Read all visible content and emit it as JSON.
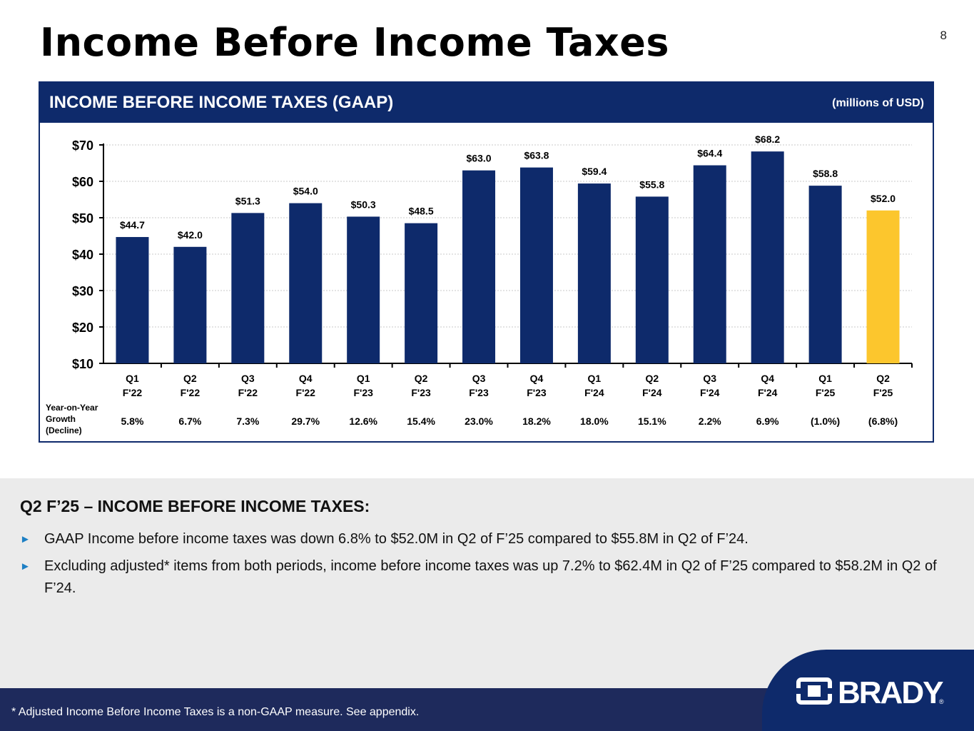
{
  "title": "Income Before Income Taxes",
  "page_number": "8",
  "panel": {
    "title": "INCOME BEFORE INCOME TAXES (GAAP)",
    "units": "(millions of USD)"
  },
  "chart_data": {
    "type": "bar",
    "title": "INCOME BEFORE INCOME TAXES (GAAP)",
    "categories": [
      "Q1\nF'22",
      "Q2\nF'22",
      "Q3\nF'22",
      "Q4\nF'22",
      "Q1\nF'23",
      "Q2\nF'23",
      "Q3\nF'23",
      "Q4\nF'23",
      "Q1\nF'24",
      "Q2\nF'24",
      "Q3\nF'24",
      "Q4\nF'24",
      "Q1\nF'25",
      "Q2\nF'25"
    ],
    "values": [
      44.7,
      42.0,
      51.3,
      54.0,
      50.3,
      48.5,
      63.0,
      63.8,
      59.4,
      55.8,
      64.4,
      68.2,
      58.8,
      52.0
    ],
    "value_labels": [
      "$44.7",
      "$42.0",
      "$51.3",
      "$54.0",
      "$50.3",
      "$48.5",
      "$63.0",
      "$63.8",
      "$59.4",
      "$55.8",
      "$64.4",
      "$68.2",
      "$58.8",
      "$52.0"
    ],
    "highlight_index": 13,
    "ylim": [
      10,
      70
    ],
    "yticks": [
      "$10",
      "$20",
      "$30",
      "$40",
      "$50",
      "$60",
      "$70"
    ],
    "grid": true,
    "colors": {
      "bar": "#0e2a6b",
      "highlight": "#fcc62d",
      "axis": "#000000",
      "grid": "#c8c8c8"
    },
    "growth_label": [
      "Year-on-Year",
      "Growth",
      "(Decline)"
    ],
    "growth": [
      "5.8%",
      "6.7%",
      "7.3%",
      "29.7%",
      "12.6%",
      "15.4%",
      "23.0%",
      "18.2%",
      "18.0%",
      "15.1%",
      "2.2%",
      "6.9%",
      "(1.0%)",
      "(6.8%)"
    ]
  },
  "summary": {
    "heading": "Q2 F’25 – INCOME BEFORE INCOME TAXES:",
    "bullets": [
      "GAAP Income before income taxes was down 6.8% to $52.0M in Q2 of F’25 compared to $55.8M in Q2 of F’24.",
      "Excluding adjusted* items from both periods, income before income taxes was up 7.2% to $62.4M in Q2 of F’25 compared to $58.2M in Q2 of F’24."
    ],
    "bullet_icon": "right-triangle-icon"
  },
  "footer": {
    "note": "* Adjusted Income Before Income Taxes is a non-GAAP measure.  See appendix.",
    "logo_text": "BRADY",
    "logo_mark": "®"
  }
}
